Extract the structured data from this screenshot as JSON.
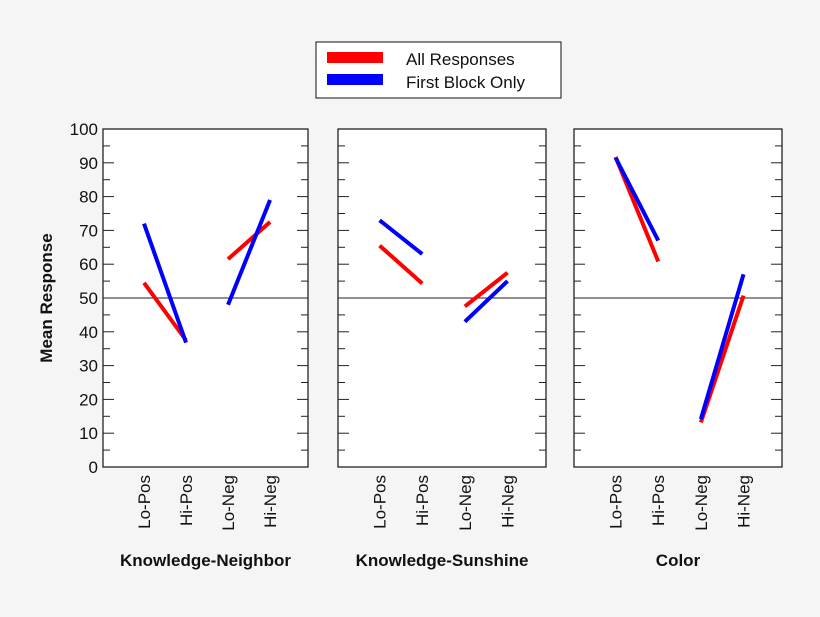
{
  "chart_data": {
    "type": "line",
    "ylabel": "Mean Response",
    "ylim": [
      0,
      100
    ],
    "yticks": [
      0,
      10,
      20,
      30,
      40,
      50,
      60,
      70,
      80,
      90,
      100
    ],
    "reference_line": 50,
    "categories": [
      "Lo-Pos",
      "Hi-Pos",
      "Lo-Neg",
      "Hi-Neg"
    ],
    "legend": {
      "position": "top-center",
      "entries": [
        "All Responses",
        "First Block Only"
      ]
    },
    "colors": {
      "All Responses": "#ff0000",
      "First Block Only": "#0000ff"
    },
    "panels": [
      {
        "title": "Knowledge-Neighbor",
        "series": [
          {
            "name": "All Responses",
            "values": [
              54.5,
              37.5,
              61.5,
              72.5
            ]
          },
          {
            "name": "First Block Only",
            "values": [
              72,
              36.8,
              48,
              79
            ]
          }
        ]
      },
      {
        "title": "Knowledge-Sunshine",
        "series": [
          {
            "name": "All Responses",
            "values": [
              65.5,
              54.3,
              47.5,
              57.5
            ]
          },
          {
            "name": "First Block Only",
            "values": [
              73,
              63,
              43,
              55
            ]
          }
        ]
      },
      {
        "title": "Color",
        "series": [
          {
            "name": "All Responses",
            "values": [
              91.7,
              60.8,
              13.2,
              50.7
            ]
          },
          {
            "name": "First Block Only",
            "values": [
              91.5,
              67,
              14.2,
              57
            ]
          }
        ]
      }
    ]
  }
}
